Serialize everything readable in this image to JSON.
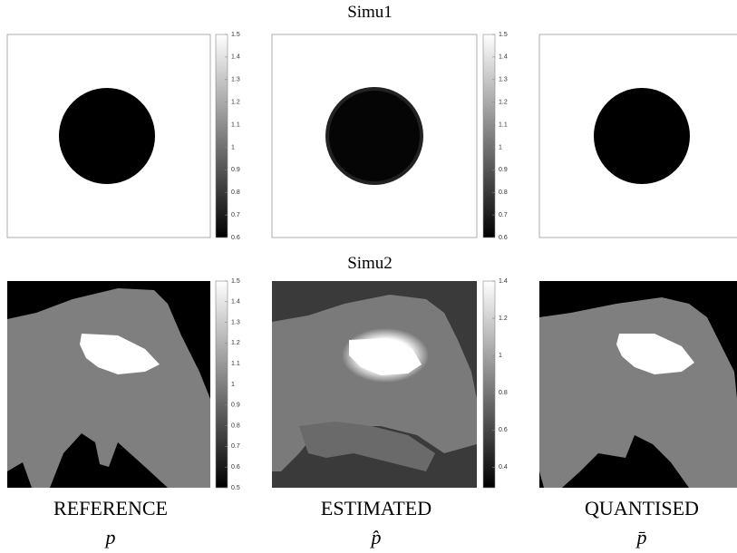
{
  "rows": [
    {
      "title": "Simu1",
      "colorbars": [
        {
          "lim": [
            0.6,
            1.5
          ],
          "ticks": [
            0.6,
            0.7,
            0.8,
            0.9,
            1,
            1.1,
            1.2,
            1.3,
            1.4,
            1.5
          ]
        },
        {
          "lim": [
            0.6,
            1.5
          ],
          "ticks": [
            0.6,
            0.7,
            0.8,
            0.9,
            1,
            1.1,
            1.2,
            1.3,
            1.4,
            1.5
          ]
        }
      ]
    },
    {
      "title": "Simu2",
      "colorbars": [
        {
          "lim": [
            0.5,
            1.5
          ],
          "ticks": [
            0.5,
            0.6,
            0.7,
            0.8,
            0.9,
            1,
            1.1,
            1.2,
            1.3,
            1.4,
            1.5
          ]
        },
        {
          "lim": [
            0.29,
            1.4
          ],
          "ticks": [
            0.4,
            0.6,
            0.8,
            1,
            1.2,
            1.4
          ]
        }
      ]
    }
  ],
  "columns": [
    {
      "label": "REFERENCE",
      "symbol": "p"
    },
    {
      "label": "ESTIMATED",
      "symbol": "p̂"
    },
    {
      "label": "QUANTISED",
      "symbol": "p̄"
    }
  ]
}
